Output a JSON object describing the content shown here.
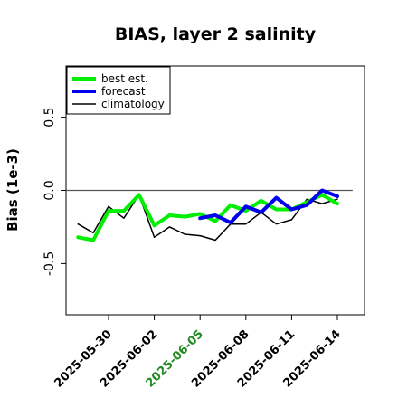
{
  "chart_data": {
    "type": "line",
    "title": "BIAS, layer 2 salinity",
    "xlabel": "",
    "ylabel": "Bias (1e-3)",
    "xlim": [
      "2025-05-26",
      "2025-06-15"
    ],
    "ylim": [
      -0.85,
      0.85
    ],
    "yticks": [
      -0.5,
      0.0,
      0.5
    ],
    "ytick_labels": [
      "-0.5",
      "0.0",
      "0.5"
    ],
    "xticks": [
      "2025-05-30",
      "2025-06-02",
      "2025-06-05",
      "2025-06-08",
      "2025-06-11",
      "2025-06-14"
    ],
    "xtick_labels": [
      "2025-05-30",
      "2025-06-02",
      "2025-06-05",
      "2025-06-08",
      "2025-06-11",
      "2025-06-14"
    ],
    "xtick_colors": [
      "#000000",
      "#000000",
      "#228b22",
      "#000000",
      "#000000",
      "#000000"
    ],
    "reference_line": 0.0,
    "grid": false,
    "legend_position": "top-left",
    "series": [
      {
        "name": "climatology",
        "color": "#000000",
        "x": [
          "2025-05-28",
          "2025-05-29",
          "2025-05-30",
          "2025-05-31",
          "2025-06-01",
          "2025-06-02",
          "2025-06-03",
          "2025-06-04",
          "2025-06-05",
          "2025-06-06",
          "2025-06-07",
          "2025-06-08",
          "2025-06-09",
          "2025-06-10",
          "2025-06-11",
          "2025-06-12",
          "2025-06-13",
          "2025-06-14"
        ],
        "values": [
          -0.23,
          -0.29,
          -0.11,
          -0.19,
          -0.03,
          -0.32,
          -0.25,
          -0.3,
          -0.31,
          -0.34,
          -0.23,
          -0.23,
          -0.15,
          -0.23,
          -0.2,
          -0.06,
          -0.09,
          -0.06
        ]
      },
      {
        "name": "best est.",
        "color": "#00ee00",
        "x": [
          "2025-05-28",
          "2025-05-29",
          "2025-05-30",
          "2025-05-31",
          "2025-06-01",
          "2025-06-02",
          "2025-06-03",
          "2025-06-04",
          "2025-06-05",
          "2025-06-06",
          "2025-06-07",
          "2025-06-08",
          "2025-06-09",
          "2025-06-10",
          "2025-06-11",
          "2025-06-12",
          "2025-06-13",
          "2025-06-14"
        ],
        "values": [
          -0.32,
          -0.34,
          -0.14,
          -0.14,
          -0.03,
          -0.24,
          -0.17,
          -0.18,
          -0.16,
          -0.21,
          -0.1,
          -0.14,
          -0.07,
          -0.13,
          -0.13,
          -0.08,
          -0.03,
          -0.09
        ]
      },
      {
        "name": "forecast",
        "color": "#0000ee",
        "x": [
          "2025-06-05",
          "2025-06-06",
          "2025-06-07",
          "2025-06-08",
          "2025-06-09",
          "2025-06-10",
          "2025-06-11",
          "2025-06-12",
          "2025-06-13",
          "2025-06-14"
        ],
        "values": [
          -0.19,
          -0.17,
          -0.22,
          -0.11,
          -0.15,
          -0.05,
          -0.13,
          -0.1,
          0.0,
          -0.04
        ]
      }
    ]
  }
}
